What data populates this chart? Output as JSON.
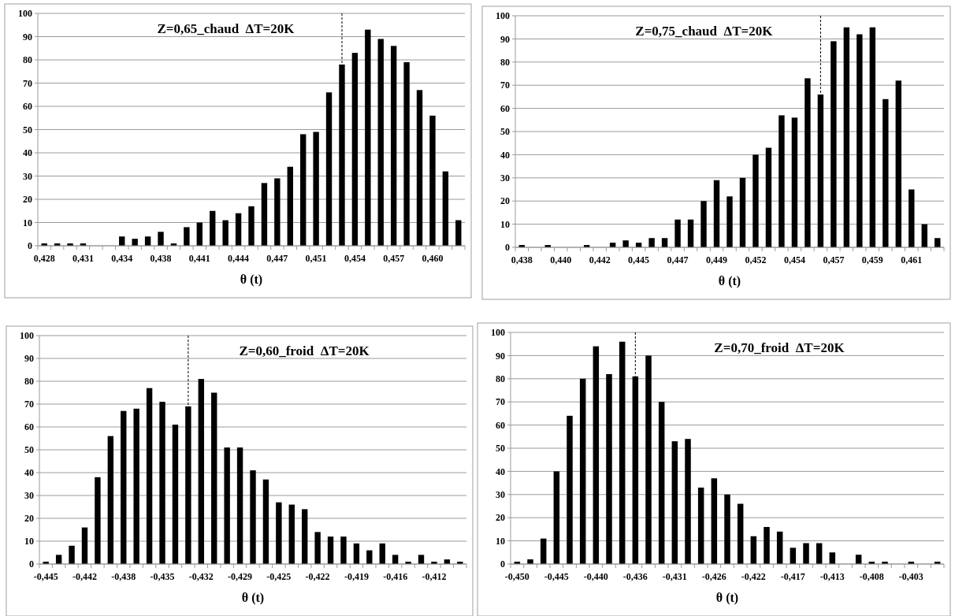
{
  "chart_data": [
    {
      "type": "bar",
      "title": "Z=0,65_chaud  ΔT=20K",
      "xlabel": "θ (t)",
      "categories": [
        "0,428",
        null,
        null,
        "0,431",
        null,
        null,
        "0,434",
        null,
        null,
        "0,438",
        null,
        null,
        "0,441",
        null,
        null,
        "0,444",
        null,
        null,
        "0,447",
        null,
        null,
        "0,451",
        null,
        null,
        "0,454",
        null,
        null,
        "0,457",
        null,
        null,
        "0,460",
        null,
        null
      ],
      "values": [
        1,
        1,
        1,
        1,
        0,
        0,
        4,
        3,
        4,
        6,
        1,
        8,
        10,
        15,
        11,
        14,
        17,
        27,
        29,
        34,
        48,
        49,
        66,
        78,
        83,
        93,
        89,
        86,
        79,
        67,
        56,
        32,
        11
      ],
      "color": "#000000",
      "ylim": [
        0,
        100
      ],
      "yticks": [
        0,
        10,
        20,
        30,
        40,
        50,
        60,
        70,
        80,
        90,
        100
      ],
      "grid": "y"
    },
    {
      "type": "bar",
      "title": "Z=0,75_chaud  ΔT=20K",
      "xlabel": "θ (t)",
      "categories": [
        "0,438",
        null,
        null,
        "0,440",
        null,
        null,
        "0,442",
        null,
        null,
        "0,445",
        null,
        null,
        "0,447",
        null,
        null,
        "0,449",
        null,
        null,
        "0,452",
        null,
        null,
        "0,454",
        null,
        null,
        "0,457",
        null,
        null,
        "0,459",
        null,
        null,
        "0,461",
        null,
        null
      ],
      "values": [
        1,
        0,
        1,
        0,
        0,
        1,
        0,
        2,
        3,
        2,
        4,
        4,
        12,
        12,
        20,
        29,
        22,
        30,
        40,
        43,
        57,
        56,
        73,
        66,
        89,
        95,
        92,
        95,
        64,
        72,
        25,
        10,
        4
      ],
      "color": "#000000",
      "ylim": [
        0,
        100
      ],
      "yticks": [
        0,
        10,
        20,
        30,
        40,
        50,
        60,
        70,
        80,
        90,
        100
      ],
      "grid": "y"
    },
    {
      "type": "bar",
      "title": "Z=0,60_froid  ΔT=20K",
      "xlabel": "θ (t)",
      "categories": [
        "-0,445",
        null,
        null,
        "-0,442",
        null,
        null,
        "-0,438",
        null,
        null,
        "-0,435",
        null,
        null,
        "-0,432",
        null,
        null,
        "-0,429",
        null,
        null,
        "-0,425",
        null,
        null,
        "-0,422",
        null,
        null,
        "-0,419",
        null,
        null,
        "-0,416",
        null,
        null,
        "-0,412",
        null,
        null
      ],
      "values": [
        1,
        4,
        8,
        16,
        38,
        56,
        67,
        68,
        77,
        71,
        61,
        69,
        81,
        75,
        51,
        51,
        41,
        37,
        27,
        26,
        24,
        14,
        12,
        12,
        9,
        6,
        9,
        4,
        1,
        4,
        1,
        2,
        1
      ],
      "color": "#000000",
      "ylim": [
        0,
        100
      ],
      "yticks": [
        0,
        10,
        20,
        30,
        40,
        50,
        60,
        70,
        80,
        90,
        100
      ],
      "grid": "y"
    },
    {
      "type": "bar",
      "title": "Z=0,70_froid  ΔT=20K",
      "xlabel": "θ (t)",
      "categories": [
        "-0,450",
        null,
        null,
        "-0,445",
        null,
        null,
        "-0,440",
        null,
        null,
        "-0,436",
        null,
        null,
        "-0,431",
        null,
        null,
        "-0,426",
        null,
        null,
        "-0,422",
        null,
        null,
        "-0,417",
        null,
        null,
        "-0,413",
        null,
        null,
        "-0,408",
        null,
        null,
        "-0,403",
        null,
        null
      ],
      "values": [
        1,
        2,
        11,
        40,
        64,
        80,
        94,
        82,
        96,
        81,
        90,
        70,
        53,
        54,
        33,
        37,
        30,
        26,
        12,
        16,
        14,
        7,
        9,
        9,
        5,
        0,
        4,
        1,
        1,
        0,
        1,
        0,
        1
      ],
      "color": "#000000",
      "ylim": [
        0,
        100
      ],
      "yticks": [
        0,
        10,
        20,
        30,
        40,
        50,
        60,
        70,
        80,
        90,
        100
      ],
      "grid": "y"
    }
  ]
}
